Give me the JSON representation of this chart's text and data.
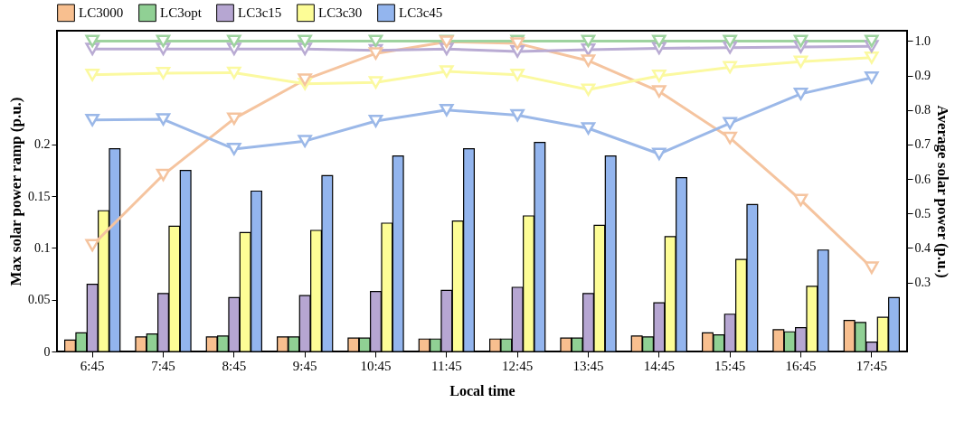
{
  "chart_data": {
    "type": "bar",
    "xlabel": "Local time",
    "ylabel": "Max solar power ramp (p.u.)",
    "y2label": "Average solar power (p.u.)",
    "categories": [
      "6:45",
      "7:45",
      "8:45",
      "9:45",
      "10:45",
      "11:45",
      "12:45",
      "13:45",
      "14:45",
      "15:45",
      "16:45",
      "17:45"
    ],
    "ylim": [
      0,
      0.31
    ],
    "yticks": [
      0,
      0.05,
      0.1,
      0.15,
      0.2
    ],
    "y2lim": [
      0.1,
      1.03
    ],
    "y2ticks": [
      0.3,
      0.4,
      0.5,
      0.6,
      0.7,
      0.8,
      0.9,
      {
        "value": 1.0,
        "label": "1.0"
      }
    ],
    "legend": "top",
    "grid": false,
    "marker": "triangle",
    "series": [
      {
        "name": "LC3000",
        "color": "#f8bf8f",
        "values": [
          0.011,
          0.014,
          0.014,
          0.014,
          0.013,
          0.012,
          0.012,
          0.013,
          0.015,
          0.018,
          0.021,
          0.03
        ]
      },
      {
        "name": "LC3opt",
        "color": "#90d094",
        "values": [
          0.018,
          0.017,
          0.015,
          0.014,
          0.013,
          0.012,
          0.012,
          0.013,
          0.014,
          0.016,
          0.019,
          0.028
        ]
      },
      {
        "name": "LC3c15",
        "color": "#b6a6d2",
        "values": [
          0.065,
          0.056,
          0.052,
          0.054,
          0.058,
          0.059,
          0.062,
          0.056,
          0.047,
          0.036,
          0.023,
          0.009
        ]
      },
      {
        "name": "LC3c30",
        "color": "#fdfd96",
        "values": [
          0.136,
          0.121,
          0.115,
          0.117,
          0.124,
          0.126,
          0.131,
          0.122,
          0.111,
          0.089,
          0.063,
          0.033
        ]
      },
      {
        "name": "LC3c45",
        "color": "#93b5ee",
        "values": [
          0.196,
          0.175,
          0.155,
          0.17,
          0.189,
          0.196,
          0.202,
          0.189,
          0.168,
          0.142,
          0.098,
          0.052
        ]
      },
      {
        "type": "line",
        "axis": "y2",
        "color": "#f5c49f",
        "values": [
          0.408,
          0.612,
          0.775,
          0.888,
          0.964,
          0.998,
          0.993,
          0.943,
          0.854,
          0.719,
          0.539,
          0.343
        ]
      },
      {
        "type": "line",
        "axis": "y2",
        "color": "#9ed39f",
        "values": [
          1.0,
          1.0,
          1.0,
          1.0,
          1.0,
          1.0,
          1.0,
          1.0,
          1.0,
          1.0,
          1.0,
          1.0
        ]
      },
      {
        "type": "line",
        "axis": "y2",
        "color": "#b9abd3",
        "values": [
          0.977,
          0.977,
          0.977,
          0.977,
          0.973,
          0.977,
          0.97,
          0.975,
          0.979,
          0.981,
          0.983,
          0.985
        ]
      },
      {
        "type": "line",
        "axis": "y2",
        "color": "#fbf9a0",
        "values": [
          0.902,
          0.907,
          0.908,
          0.876,
          0.88,
          0.912,
          0.902,
          0.859,
          0.899,
          0.924,
          0.94,
          0.952
        ]
      },
      {
        "type": "line",
        "axis": "y2",
        "color": "#9bb8e8",
        "values": [
          0.771,
          0.773,
          0.687,
          0.71,
          0.768,
          0.8,
          0.785,
          0.747,
          0.673,
          0.762,
          0.847,
          0.894
        ]
      }
    ]
  }
}
